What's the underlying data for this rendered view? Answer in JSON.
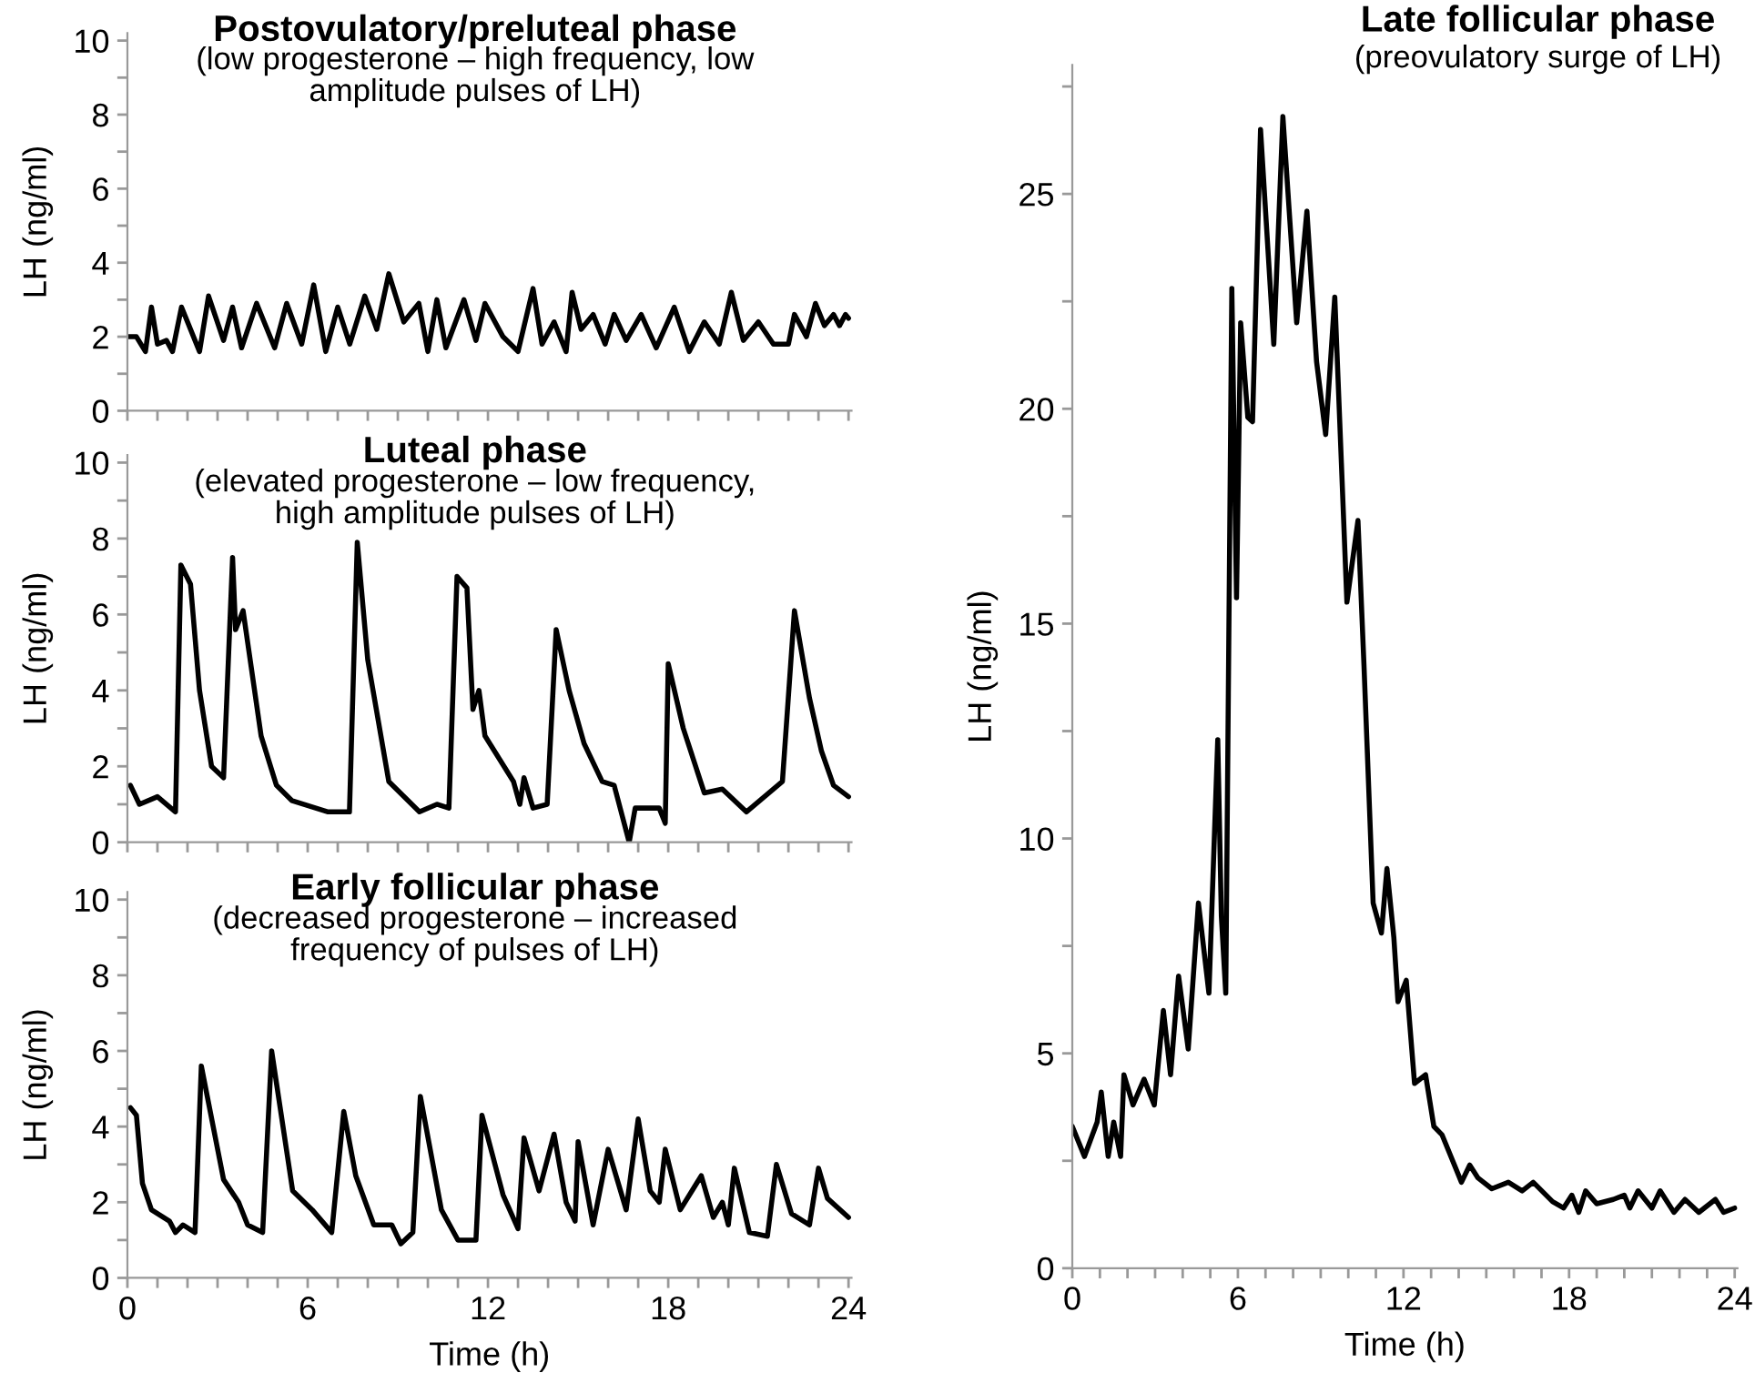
{
  "chart_data": [
    {
      "type": "line",
      "title": "Postovulatory/preluteal phase",
      "subtitle": "(low progesterone – high frequency, low\namplitude pulses of LH)",
      "ylabel": "LH (ng/ml)",
      "color": "#000000",
      "tick_labels": "y",
      "xlim": [
        0,
        24.1
      ],
      "ylim": [
        0,
        10.2
      ],
      "xticks": [
        0,
        {
          "value": 1,
          "label": null
        },
        {
          "value": 2,
          "label": null
        },
        {
          "value": 3,
          "label": null
        },
        {
          "value": 4,
          "label": null
        },
        {
          "value": 5,
          "label": null
        },
        {
          "value": 6,
          "label": null
        },
        {
          "value": 7,
          "label": null
        },
        {
          "value": 8,
          "label": null
        },
        {
          "value": 9,
          "label": null
        },
        {
          "value": 10,
          "label": null
        },
        {
          "value": 11,
          "label": null
        },
        {
          "value": 12,
          "label": null
        },
        {
          "value": 13,
          "label": null
        },
        {
          "value": 14,
          "label": null
        },
        {
          "value": 15,
          "label": null
        },
        {
          "value": 16,
          "label": null
        },
        {
          "value": 17,
          "label": null
        },
        {
          "value": 18,
          "label": null
        },
        {
          "value": 19,
          "label": null
        },
        {
          "value": 20,
          "label": null
        },
        {
          "value": 21,
          "label": null
        },
        {
          "value": 22,
          "label": null
        },
        {
          "value": 23,
          "label": null
        },
        {
          "value": 24,
          "label": null
        }
      ],
      "yticks": [
        0,
        {
          "value": 1,
          "label": null
        },
        2,
        {
          "value": 3,
          "label": null
        },
        4,
        {
          "value": 5,
          "label": null
        },
        6,
        {
          "value": 7,
          "label": null
        },
        8,
        {
          "value": 9,
          "label": null
        },
        10
      ],
      "x": [
        0,
        0.3,
        0.6,
        0.8,
        1.0,
        1.3,
        1.5,
        1.8,
        2.4,
        2.7,
        3.2,
        3.5,
        3.8,
        4.3,
        4.9,
        5.3,
        5.8,
        6.2,
        6.6,
        7.0,
        7.4,
        7.9,
        8.3,
        8.7,
        9.2,
        9.7,
        10.0,
        10.3,
        10.6,
        11.2,
        11.6,
        11.9,
        12.5,
        13.0,
        13.5,
        13.8,
        14.2,
        14.6,
        14.8,
        15.1,
        15.5,
        15.9,
        16.2,
        16.6,
        17.1,
        17.6,
        18.2,
        18.7,
        19.2,
        19.7,
        20.1,
        20.5,
        21.0,
        21.5,
        22.0,
        22.2,
        22.6,
        22.9,
        23.2,
        23.5,
        23.7,
        23.9,
        24
      ],
      "values": [
        2.0,
        2.0,
        1.6,
        2.8,
        1.8,
        1.9,
        1.6,
        2.8,
        1.6,
        3.1,
        1.9,
        2.8,
        1.7,
        2.9,
        1.7,
        2.9,
        1.8,
        3.4,
        1.6,
        2.8,
        1.8,
        3.1,
        2.2,
        3.7,
        2.4,
        2.9,
        1.6,
        3.0,
        1.7,
        3.0,
        1.9,
        2.9,
        2.0,
        1.6,
        3.3,
        1.8,
        2.4,
        1.6,
        3.2,
        2.2,
        2.6,
        1.8,
        2.6,
        1.9,
        2.6,
        1.7,
        2.8,
        1.6,
        2.4,
        1.8,
        3.2,
        1.9,
        2.4,
        1.8,
        1.8,
        2.6,
        2.0,
        2.9,
        2.3,
        2.6,
        2.3,
        2.6,
        2.5
      ]
    },
    {
      "type": "line",
      "title": "Luteal phase",
      "subtitle": "(elevated progesterone – low frequency,\nhigh amplitude pulses of LH)",
      "ylabel": "LH (ng/ml)",
      "color": "#000000",
      "tick_labels": "y",
      "xlim": [
        0,
        24.1
      ],
      "ylim": [
        0,
        10.2
      ],
      "xticks": [
        0,
        {
          "value": 1,
          "label": null
        },
        {
          "value": 2,
          "label": null
        },
        {
          "value": 3,
          "label": null
        },
        {
          "value": 4,
          "label": null
        },
        {
          "value": 5,
          "label": null
        },
        {
          "value": 6,
          "label": null
        },
        {
          "value": 7,
          "label": null
        },
        {
          "value": 8,
          "label": null
        },
        {
          "value": 9,
          "label": null
        },
        {
          "value": 10,
          "label": null
        },
        {
          "value": 11,
          "label": null
        },
        {
          "value": 12,
          "label": null
        },
        {
          "value": 13,
          "label": null
        },
        {
          "value": 14,
          "label": null
        },
        {
          "value": 15,
          "label": null
        },
        {
          "value": 16,
          "label": null
        },
        {
          "value": 17,
          "label": null
        },
        {
          "value": 18,
          "label": null
        },
        {
          "value": 19,
          "label": null
        },
        {
          "value": 20,
          "label": null
        },
        {
          "value": 21,
          "label": null
        },
        {
          "value": 22,
          "label": null
        },
        {
          "value": 23,
          "label": null
        },
        {
          "value": 24,
          "label": null
        }
      ],
      "yticks": [
        0,
        {
          "value": 1,
          "label": null
        },
        2,
        {
          "value": 3,
          "label": null
        },
        4,
        {
          "value": 5,
          "label": null
        },
        6,
        {
          "value": 7,
          "label": null
        },
        8,
        {
          "value": 9,
          "label": null
        },
        10
      ],
      "x": [
        0.1,
        0.4,
        1.0,
        1.6,
        1.78,
        2.1,
        2.4,
        2.8,
        3.2,
        3.5,
        3.6,
        3.85,
        4.45,
        4.96,
        5.47,
        6.68,
        7.39,
        7.65,
        8.0,
        8.7,
        9.72,
        10.3,
        10.7,
        10.97,
        11.3,
        11.5,
        11.7,
        11.9,
        12.85,
        13.06,
        13.2,
        13.5,
        13.97,
        14.27,
        14.7,
        15.2,
        15.8,
        16.2,
        16.7,
        16.9,
        17.7,
        17.9,
        18.0,
        18.5,
        19.2,
        19.8,
        20.6,
        21.8,
        22.2,
        22.7,
        23.1,
        23.5,
        24.0
      ],
      "values": [
        1.5,
        1.0,
        1.2,
        0.8,
        7.3,
        6.8,
        4.0,
        2.0,
        1.7,
        7.5,
        5.6,
        6.1,
        2.8,
        1.5,
        1.1,
        0.8,
        0.8,
        7.9,
        4.8,
        1.6,
        0.8,
        1.0,
        0.9,
        7.0,
        6.7,
        3.5,
        4.0,
        2.8,
        1.6,
        1.0,
        1.7,
        0.9,
        1.0,
        5.6,
        4.0,
        2.6,
        1.6,
        1.5,
        0.0,
        0.9,
        0.9,
        0.5,
        4.7,
        3.0,
        1.3,
        1.4,
        0.8,
        1.6,
        6.1,
        3.8,
        2.4,
        1.5,
        1.2
      ]
    },
    {
      "type": "line",
      "title": "Early follicular phase",
      "subtitle": "(decreased progesterone – increased\nfrequency of pulses of LH)",
      "xlabel": "Time (h)",
      "ylabel": "LH (ng/ml)",
      "color": "#000000",
      "xlim": [
        0,
        24.1
      ],
      "ylim": [
        0,
        10.2
      ],
      "xticks": [
        0,
        {
          "value": 1,
          "label": null
        },
        {
          "value": 2,
          "label": null
        },
        {
          "value": 3,
          "label": null
        },
        {
          "value": 4,
          "label": null
        },
        {
          "value": 5,
          "label": null
        },
        6,
        {
          "value": 7,
          "label": null
        },
        {
          "value": 8,
          "label": null
        },
        {
          "value": 9,
          "label": null
        },
        {
          "value": 10,
          "label": null
        },
        {
          "value": 11,
          "label": null
        },
        12,
        {
          "value": 13,
          "label": null
        },
        {
          "value": 14,
          "label": null
        },
        {
          "value": 15,
          "label": null
        },
        {
          "value": 16,
          "label": null
        },
        {
          "value": 17,
          "label": null
        },
        18,
        {
          "value": 19,
          "label": null
        },
        {
          "value": 20,
          "label": null
        },
        {
          "value": 21,
          "label": null
        },
        {
          "value": 22,
          "label": null
        },
        {
          "value": 23,
          "label": null
        },
        24
      ],
      "yticks": [
        0,
        {
          "value": 1,
          "label": null
        },
        2,
        {
          "value": 3,
          "label": null
        },
        4,
        {
          "value": 5,
          "label": null
        },
        6,
        {
          "value": 7,
          "label": null
        },
        8,
        {
          "value": 9,
          "label": null
        },
        10
      ],
      "x": [
        0.1,
        0.3,
        0.5,
        0.8,
        1.4,
        1.6,
        1.85,
        2.25,
        2.46,
        3.2,
        3.7,
        4.0,
        4.5,
        4.8,
        5.5,
        6.15,
        6.8,
        7.2,
        7.6,
        8.2,
        8.8,
        9.1,
        9.5,
        9.75,
        10.45,
        11.0,
        11.6,
        11.8,
        12.5,
        13.0,
        13.2,
        13.7,
        14.2,
        14.6,
        14.9,
        15.0,
        15.5,
        16.0,
        16.6,
        17.0,
        17.4,
        17.7,
        17.9,
        18.4,
        19.1,
        19.5,
        19.8,
        20.0,
        20.2,
        20.7,
        21.3,
        21.6,
        22.1,
        22.7,
        23.0,
        23.3,
        24.0
      ],
      "values": [
        4.5,
        4.3,
        2.5,
        1.8,
        1.5,
        1.2,
        1.4,
        1.2,
        5.6,
        2.6,
        2.0,
        1.4,
        1.2,
        6.0,
        2.3,
        1.8,
        1.2,
        4.4,
        2.7,
        1.4,
        1.4,
        0.9,
        1.2,
        4.8,
        1.8,
        1.0,
        1.0,
        4.3,
        2.2,
        1.3,
        3.7,
        2.3,
        3.8,
        2.0,
        1.5,
        3.6,
        1.4,
        3.4,
        1.8,
        4.2,
        2.3,
        2.0,
        3.4,
        1.8,
        2.7,
        1.6,
        2.0,
        1.4,
        2.9,
        1.2,
        1.1,
        3.0,
        1.7,
        1.4,
        2.9,
        2.1,
        1.6
      ]
    },
    {
      "type": "line",
      "title": "Late follicular phase",
      "subtitle": "(preovulatory surge of LH)",
      "xlabel": "Time (h)",
      "ylabel": "LH (ng/ml)",
      "color": "#000000",
      "xlim": [
        0,
        24.1
      ],
      "ylim": [
        0,
        28
      ],
      "xticks": [
        0,
        {
          "value": 1,
          "label": null
        },
        {
          "value": 2,
          "label": null
        },
        {
          "value": 3,
          "label": null
        },
        {
          "value": 4,
          "label": null
        },
        {
          "value": 5,
          "label": null
        },
        6,
        {
          "value": 7,
          "label": null
        },
        {
          "value": 8,
          "label": null
        },
        {
          "value": 9,
          "label": null
        },
        {
          "value": 10,
          "label": null
        },
        {
          "value": 11,
          "label": null
        },
        12,
        {
          "value": 13,
          "label": null
        },
        {
          "value": 14,
          "label": null
        },
        {
          "value": 15,
          "label": null
        },
        {
          "value": 16,
          "label": null
        },
        {
          "value": 17,
          "label": null
        },
        18,
        {
          "value": 19,
          "label": null
        },
        {
          "value": 20,
          "label": null
        },
        {
          "value": 21,
          "label": null
        },
        {
          "value": 22,
          "label": null
        },
        {
          "value": 23,
          "label": null
        },
        24
      ],
      "yticks": [
        0,
        {
          "value": 2.5,
          "label": null
        },
        5,
        {
          "value": 7.5,
          "label": null
        },
        10,
        {
          "value": 12.5,
          "label": null
        },
        15,
        {
          "value": 17.5,
          "label": null
        },
        20,
        {
          "value": 22.5,
          "label": null
        },
        25,
        {
          "value": 27.5,
          "label": null
        }
      ],
      "x": [
        0,
        0.44,
        0.9,
        1.05,
        1.3,
        1.5,
        1.75,
        1.87,
        2.2,
        2.6,
        2.97,
        3.3,
        3.56,
        3.85,
        4.2,
        4.57,
        4.95,
        5.27,
        5.4,
        5.56,
        5.78,
        5.95,
        6.1,
        6.36,
        6.53,
        6.82,
        7.3,
        7.63,
        8.13,
        8.5,
        8.85,
        9.18,
        9.51,
        9.69,
        9.95,
        10.35,
        10.57,
        10.9,
        11.2,
        11.4,
        11.65,
        11.8,
        12.1,
        12.4,
        12.8,
        13.1,
        13.4,
        14.1,
        14.4,
        14.7,
        15.2,
        15.8,
        16.3,
        16.7,
        17.4,
        17.8,
        18.1,
        18.35,
        18.6,
        19.0,
        19.6,
        20.0,
        20.2,
        20.5,
        21.0,
        21.3,
        21.8,
        22.2,
        22.7,
        23.3,
        23.6,
        24
      ],
      "values": [
        3.3,
        2.6,
        3.4,
        4.1,
        2.6,
        3.4,
        2.6,
        4.5,
        3.8,
        4.4,
        3.8,
        6.0,
        4.5,
        6.8,
        5.1,
        8.5,
        6.4,
        12.3,
        8.2,
        6.4,
        22.8,
        15.6,
        22.0,
        19.8,
        19.7,
        26.5,
        21.5,
        26.8,
        22.0,
        24.6,
        21.1,
        19.4,
        22.6,
        19.7,
        15.5,
        17.4,
        14.0,
        8.5,
        7.8,
        9.3,
        7.7,
        6.2,
        6.7,
        4.3,
        4.5,
        3.3,
        3.1,
        2.0,
        2.4,
        2.1,
        1.85,
        2.0,
        1.8,
        2.0,
        1.55,
        1.4,
        1.7,
        1.3,
        1.8,
        1.5,
        1.6,
        1.7,
        1.4,
        1.8,
        1.4,
        1.8,
        1.3,
        1.6,
        1.3,
        1.6,
        1.3,
        1.4
      ]
    }
  ]
}
